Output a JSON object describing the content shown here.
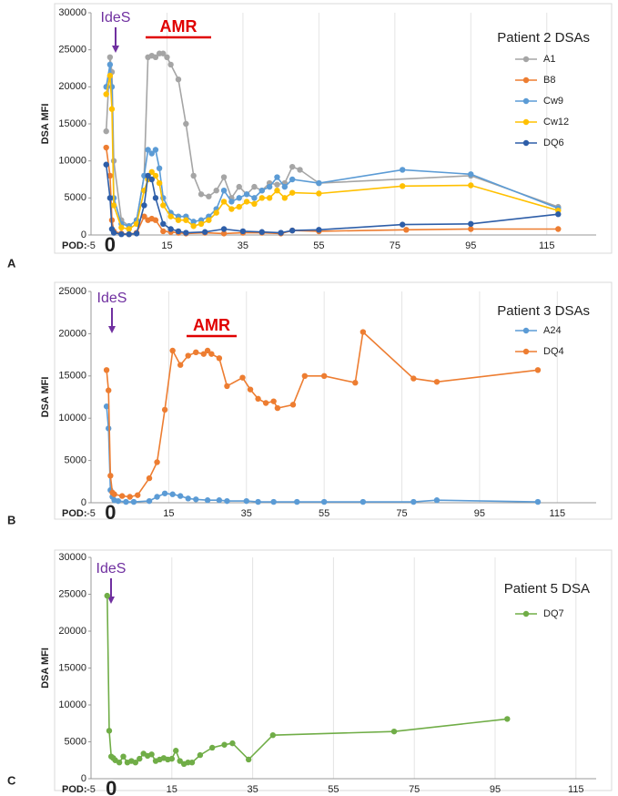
{
  "chart_data": [
    {
      "type": "line",
      "panel": "A",
      "title": "Patient 2 DSAs",
      "y_label": "DSA MFI",
      "x_label": "POD:",
      "annotations": [
        "IdeS",
        "AMR"
      ],
      "zero_label": "0",
      "xlim": [
        -5,
        128
      ],
      "xticks": [
        -5,
        15,
        35,
        55,
        75,
        95,
        115
      ],
      "ylim": [
        0,
        30000
      ],
      "yticks": [
        0,
        5000,
        10000,
        15000,
        20000,
        25000,
        30000
      ],
      "grid": true,
      "series": [
        {
          "name": "A1",
          "color": "#a5a5a5",
          "x": [
            -1,
            0,
            0.5,
            1,
            3,
            5,
            7,
            9,
            10,
            11,
            12,
            13,
            14,
            15,
            16,
            18,
            20,
            22,
            24,
            26,
            28,
            30,
            32,
            34,
            36,
            38,
            40,
            42,
            44,
            46,
            48,
            50,
            55,
            95,
            118
          ],
          "values": [
            14000,
            24000,
            22000,
            10000,
            2000,
            1200,
            2000,
            8000,
            24000,
            24200,
            24000,
            24500,
            24500,
            24000,
            23000,
            21000,
            15000,
            8000,
            5500,
            5200,
            6000,
            7800,
            5000,
            6500,
            5500,
            6500,
            6000,
            7000,
            6800,
            7000,
            9200,
            8800,
            7000,
            8000,
            3800
          ]
        },
        {
          "name": "B8",
          "color": "#ed7d31",
          "x": [
            -1,
            0,
            0.5,
            1,
            3,
            5,
            7,
            9,
            10,
            11,
            12,
            14,
            16,
            18,
            20,
            25,
            30,
            35,
            40,
            45,
            48,
            55,
            78,
            95,
            118
          ],
          "values": [
            11800,
            8000,
            2000,
            500,
            200,
            100,
            300,
            2500,
            2000,
            2200,
            2000,
            500,
            400,
            300,
            200,
            300,
            200,
            300,
            300,
            200,
            600,
            500,
            700,
            800,
            800
          ]
        },
        {
          "name": "Cw9",
          "color": "#5b9bd5",
          "x": [
            -1,
            0,
            0.5,
            1,
            3,
            5,
            7,
            9,
            10,
            11,
            12,
            13,
            14,
            16,
            18,
            20,
            22,
            24,
            26,
            28,
            30,
            32,
            34,
            36,
            38,
            40,
            42,
            44,
            46,
            48,
            55,
            77,
            95,
            118
          ],
          "values": [
            20000,
            23000,
            20000,
            5000,
            1500,
            1200,
            2000,
            8000,
            11500,
            11000,
            11500,
            9000,
            5000,
            3000,
            2500,
            2500,
            1800,
            2000,
            2500,
            3500,
            6000,
            4500,
            5000,
            5500,
            5000,
            6000,
            6500,
            7800,
            6500,
            7500,
            7000,
            8800,
            8200,
            3600
          ]
        },
        {
          "name": "Cw12",
          "color": "#ffc000",
          "x": [
            -1,
            0,
            0.5,
            1,
            3,
            5,
            7,
            9,
            10,
            11,
            12,
            13,
            14,
            16,
            18,
            20,
            22,
            24,
            26,
            28,
            30,
            32,
            34,
            36,
            38,
            40,
            42,
            44,
            46,
            48,
            55,
            77,
            95,
            118
          ],
          "values": [
            19000,
            21500,
            17000,
            4000,
            1000,
            800,
            1500,
            6000,
            7500,
            8500,
            8000,
            7000,
            4000,
            2500,
            2000,
            2000,
            1200,
            1500,
            2000,
            3000,
            4500,
            3500,
            3800,
            4500,
            4200,
            5000,
            5000,
            6000,
            5000,
            5700,
            5600,
            6600,
            6700,
            3300
          ]
        },
        {
          "name": "DQ6",
          "color": "#2e5ea8",
          "x": [
            -1,
            0,
            0.5,
            1,
            3,
            5,
            7,
            9,
            10,
            11,
            12,
            14,
            16,
            18,
            20,
            25,
            30,
            35,
            40,
            45,
            48,
            55,
            77,
            95,
            118
          ],
          "values": [
            9500,
            5000,
            800,
            300,
            100,
            100,
            200,
            4000,
            8000,
            7500,
            5000,
            1500,
            800,
            500,
            300,
            400,
            800,
            500,
            400,
            300,
            600,
            700,
            1400,
            1500,
            2800
          ]
        }
      ]
    },
    {
      "type": "line",
      "panel": "B",
      "title": "Patient 3 DSAs",
      "y_label": "DSA MFI",
      "x_label": "POD:",
      "annotations": [
        "IdeS",
        "AMR"
      ],
      "zero_label": "0",
      "xlim": [
        -5,
        125
      ],
      "xticks": [
        -5,
        15,
        35,
        55,
        75,
        95,
        115
      ],
      "ylim": [
        0,
        25000
      ],
      "yticks": [
        0,
        5000,
        10000,
        15000,
        20000,
        25000
      ],
      "grid": true,
      "series": [
        {
          "name": "A24",
          "color": "#5b9bd5",
          "x": [
            -1,
            -0.5,
            0,
            0.5,
            1,
            2,
            4,
            6,
            10,
            12,
            14,
            16,
            18,
            20,
            22,
            25,
            28,
            30,
            35,
            38,
            42,
            48,
            55,
            65,
            78,
            84,
            110
          ],
          "values": [
            11400,
            8800,
            1500,
            700,
            300,
            200,
            100,
            100,
            200,
            700,
            1100,
            1000,
            800,
            500,
            400,
            300,
            300,
            200,
            200,
            100,
            100,
            100,
            100,
            100,
            100,
            300,
            100
          ]
        },
        {
          "name": "DQ4",
          "color": "#ed7d31",
          "x": [
            -1,
            -0.5,
            0,
            0.5,
            1,
            3,
            5,
            7,
            10,
            12,
            14,
            16,
            18,
            20,
            22,
            24,
            25,
            26,
            28,
            30,
            34,
            36,
            38,
            40,
            42,
            43,
            47,
            50,
            55,
            63,
            65,
            78,
            84,
            110
          ],
          "values": [
            15700,
            13300,
            3200,
            1200,
            1000,
            800,
            700,
            900,
            2900,
            4800,
            11000,
            18000,
            16300,
            17400,
            17800,
            17600,
            18000,
            17600,
            17100,
            13800,
            14800,
            13400,
            12300,
            11800,
            12000,
            11200,
            11600,
            15000,
            15000,
            14200,
            20200,
            14700,
            14300,
            15700
          ]
        }
      ]
    },
    {
      "type": "line",
      "panel": "C",
      "title": "Patient 5 DSA",
      "y_label": "DSA MFI",
      "x_label": "POD:",
      "annotations": [
        "IdeS"
      ],
      "zero_label": "0",
      "xlim": [
        -5,
        120
      ],
      "xticks": [
        -5,
        15,
        35,
        55,
        75,
        95,
        115
      ],
      "ylim": [
        0,
        30000
      ],
      "yticks": [
        0,
        5000,
        10000,
        15000,
        20000,
        25000,
        30000
      ],
      "grid": true,
      "series": [
        {
          "name": "DQ7",
          "color": "#70ad47",
          "x": [
            -1,
            -0.5,
            0,
            0.5,
            1,
            2,
            3,
            4,
            5,
            6,
            7,
            8,
            9,
            10,
            11,
            12,
            13,
            14,
            15,
            16,
            17,
            18,
            19,
            20,
            22,
            25,
            28,
            30,
            34,
            40,
            70,
            98
          ],
          "values": [
            24800,
            6500,
            3000,
            2800,
            2500,
            2200,
            3000,
            2200,
            2400,
            2200,
            2700,
            3400,
            3100,
            3300,
            2400,
            2600,
            2800,
            2600,
            2700,
            3800,
            2400,
            2000,
            2200,
            2200,
            3200,
            4200,
            4600,
            4800,
            2600,
            5900,
            6400,
            8100
          ]
        }
      ]
    }
  ]
}
